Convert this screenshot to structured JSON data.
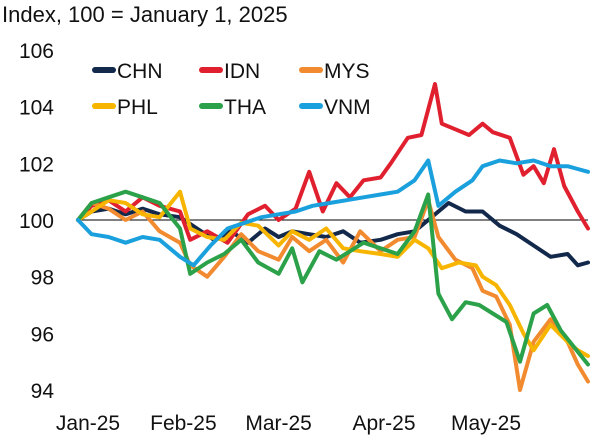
{
  "chart_data": {
    "type": "line",
    "title": "",
    "subtitle": "",
    "ylabel": "Index, 100 = January 1, 2025",
    "xlabel": "",
    "ylim": [
      94,
      106
    ],
    "y_ticks": [
      94,
      96,
      98,
      100,
      102,
      104,
      106
    ],
    "xlim": [
      "2025-01-01",
      "2025-05-31"
    ],
    "x_ticks": [
      {
        "date": "2025-01-01",
        "label": "Jan-25"
      },
      {
        "date": "2025-02-01",
        "label": "Feb-25"
      },
      {
        "date": "2025-03-01",
        "label": "Mar-25"
      },
      {
        "date": "2025-04-01",
        "label": "Apr-25"
      },
      {
        "date": "2025-05-01",
        "label": "May-25"
      }
    ],
    "reference_line": 100,
    "grid": false,
    "legend_position": "top-left",
    "series": [
      {
        "name": "CHN",
        "color": "#13294b",
        "points": [
          [
            "2025-01-01",
            100.0
          ],
          [
            "2025-01-05",
            100.3
          ],
          [
            "2025-01-10",
            100.4
          ],
          [
            "2025-01-15",
            100.2
          ],
          [
            "2025-01-20",
            100.4
          ],
          [
            "2025-01-25",
            100.2
          ],
          [
            "2025-01-31",
            100.1
          ],
          [
            "2025-02-05",
            99.7
          ],
          [
            "2025-02-10",
            99.3
          ],
          [
            "2025-02-15",
            99.6
          ],
          [
            "2025-02-20",
            99.2
          ],
          [
            "2025-02-25",
            99.7
          ],
          [
            "2025-03-01",
            99.4
          ],
          [
            "2025-03-05",
            99.6
          ],
          [
            "2025-03-10",
            99.5
          ],
          [
            "2025-03-15",
            99.4
          ],
          [
            "2025-03-20",
            99.6
          ],
          [
            "2025-03-25",
            99.2
          ],
          [
            "2025-03-31",
            99.3
          ],
          [
            "2025-04-05",
            99.5
          ],
          [
            "2025-04-10",
            99.6
          ],
          [
            "2025-04-15",
            100.1
          ],
          [
            "2025-04-20",
            100.6
          ],
          [
            "2025-04-25",
            100.3
          ],
          [
            "2025-04-30",
            100.3
          ],
          [
            "2025-05-05",
            99.8
          ],
          [
            "2025-05-10",
            99.5
          ],
          [
            "2025-05-15",
            99.1
          ],
          [
            "2025-05-20",
            98.7
          ],
          [
            "2025-05-25",
            98.8
          ],
          [
            "2025-05-28",
            98.4
          ],
          [
            "2025-05-31",
            98.5
          ]
        ]
      },
      {
        "name": "IDN",
        "color": "#e0202e",
        "points": [
          [
            "2025-01-01",
            100.0
          ],
          [
            "2025-01-05",
            100.5
          ],
          [
            "2025-01-10",
            100.7
          ],
          [
            "2025-01-15",
            100.3
          ],
          [
            "2025-01-20",
            100.8
          ],
          [
            "2025-01-25",
            100.5
          ],
          [
            "2025-01-31",
            100.3
          ],
          [
            "2025-02-03",
            99.3
          ],
          [
            "2025-02-08",
            99.6
          ],
          [
            "2025-02-14",
            99.2
          ],
          [
            "2025-02-20",
            100.2
          ],
          [
            "2025-02-25",
            100.5
          ],
          [
            "2025-03-01",
            100.0
          ],
          [
            "2025-03-06",
            100.4
          ],
          [
            "2025-03-10",
            101.7
          ],
          [
            "2025-03-14",
            100.3
          ],
          [
            "2025-03-18",
            101.3
          ],
          [
            "2025-03-22",
            100.8
          ],
          [
            "2025-03-26",
            101.4
          ],
          [
            "2025-03-31",
            101.5
          ],
          [
            "2025-04-03",
            102.0
          ],
          [
            "2025-04-08",
            102.9
          ],
          [
            "2025-04-12",
            103.0
          ],
          [
            "2025-04-16",
            104.8
          ],
          [
            "2025-04-18",
            103.4
          ],
          [
            "2025-04-22",
            103.2
          ],
          [
            "2025-04-26",
            103.0
          ],
          [
            "2025-04-30",
            103.4
          ],
          [
            "2025-05-03",
            103.1
          ],
          [
            "2025-05-08",
            102.9
          ],
          [
            "2025-05-12",
            101.6
          ],
          [
            "2025-05-15",
            101.9
          ],
          [
            "2025-05-18",
            101.3
          ],
          [
            "2025-05-21",
            102.5
          ],
          [
            "2025-05-24",
            101.2
          ],
          [
            "2025-05-28",
            100.3
          ],
          [
            "2025-05-31",
            99.7
          ]
        ]
      },
      {
        "name": "MYS",
        "color": "#f28b30",
        "points": [
          [
            "2025-01-01",
            100.0
          ],
          [
            "2025-01-05",
            100.6
          ],
          [
            "2025-01-10",
            100.4
          ],
          [
            "2025-01-15",
            100.0
          ],
          [
            "2025-01-20",
            100.3
          ],
          [
            "2025-01-25",
            99.6
          ],
          [
            "2025-01-31",
            99.2
          ],
          [
            "2025-02-03",
            98.4
          ],
          [
            "2025-02-08",
            98.0
          ],
          [
            "2025-02-13",
            98.7
          ],
          [
            "2025-02-18",
            99.5
          ],
          [
            "2025-02-23",
            98.9
          ],
          [
            "2025-03-01",
            98.6
          ],
          [
            "2025-03-05",
            99.4
          ],
          [
            "2025-03-10",
            98.9
          ],
          [
            "2025-03-15",
            99.3
          ],
          [
            "2025-03-20",
            98.5
          ],
          [
            "2025-03-25",
            99.6
          ],
          [
            "2025-03-31",
            98.9
          ],
          [
            "2025-04-05",
            99.3
          ],
          [
            "2025-04-10",
            99.4
          ],
          [
            "2025-04-14",
            100.7
          ],
          [
            "2025-04-17",
            99.4
          ],
          [
            "2025-04-22",
            98.6
          ],
          [
            "2025-04-27",
            98.3
          ],
          [
            "2025-04-30",
            97.5
          ],
          [
            "2025-05-04",
            97.3
          ],
          [
            "2025-05-08",
            96.3
          ],
          [
            "2025-05-11",
            94.0
          ],
          [
            "2025-05-15",
            95.7
          ],
          [
            "2025-05-20",
            96.5
          ],
          [
            "2025-05-25",
            95.7
          ],
          [
            "2025-05-28",
            94.9
          ],
          [
            "2025-05-31",
            94.3
          ]
        ]
      },
      {
        "name": "PHL",
        "color": "#f7b500",
        "points": [
          [
            "2025-01-01",
            100.0
          ],
          [
            "2025-01-05",
            100.3
          ],
          [
            "2025-01-10",
            100.7
          ],
          [
            "2025-01-15",
            100.6
          ],
          [
            "2025-01-20",
            100.2
          ],
          [
            "2025-01-25",
            100.1
          ],
          [
            "2025-01-31",
            101.0
          ],
          [
            "2025-02-03",
            99.7
          ],
          [
            "2025-02-08",
            99.4
          ],
          [
            "2025-02-13",
            99.3
          ],
          [
            "2025-02-18",
            99.9
          ],
          [
            "2025-02-23",
            99.8
          ],
          [
            "2025-03-01",
            99.1
          ],
          [
            "2025-03-05",
            99.6
          ],
          [
            "2025-03-10",
            99.3
          ],
          [
            "2025-03-15",
            99.7
          ],
          [
            "2025-03-20",
            99.0
          ],
          [
            "2025-03-25",
            98.9
          ],
          [
            "2025-03-31",
            98.8
          ],
          [
            "2025-04-05",
            98.7
          ],
          [
            "2025-04-10",
            99.3
          ],
          [
            "2025-04-14",
            99.0
          ],
          [
            "2025-04-18",
            98.3
          ],
          [
            "2025-04-23",
            98.5
          ],
          [
            "2025-04-28",
            98.4
          ],
          [
            "2025-04-30",
            98.0
          ],
          [
            "2025-05-04",
            97.7
          ],
          [
            "2025-05-08",
            97.0
          ],
          [
            "2025-05-12",
            96.0
          ],
          [
            "2025-05-15",
            95.4
          ],
          [
            "2025-05-20",
            96.3
          ],
          [
            "2025-05-25",
            95.7
          ],
          [
            "2025-05-28",
            95.4
          ],
          [
            "2025-05-31",
            95.2
          ]
        ]
      },
      {
        "name": "THA",
        "color": "#2ba14a",
        "points": [
          [
            "2025-01-01",
            100.0
          ],
          [
            "2025-01-05",
            100.6
          ],
          [
            "2025-01-10",
            100.8
          ],
          [
            "2025-01-15",
            101.0
          ],
          [
            "2025-01-20",
            100.8
          ],
          [
            "2025-01-25",
            100.6
          ],
          [
            "2025-01-31",
            99.7
          ],
          [
            "2025-02-03",
            98.1
          ],
          [
            "2025-02-08",
            98.5
          ],
          [
            "2025-02-13",
            98.8
          ],
          [
            "2025-02-18",
            99.3
          ],
          [
            "2025-02-23",
            98.5
          ],
          [
            "2025-03-01",
            98.1
          ],
          [
            "2025-03-05",
            99.0
          ],
          [
            "2025-03-08",
            97.8
          ],
          [
            "2025-03-13",
            98.9
          ],
          [
            "2025-03-18",
            98.6
          ],
          [
            "2025-03-22",
            98.9
          ],
          [
            "2025-03-26",
            99.2
          ],
          [
            "2025-03-31",
            99.0
          ],
          [
            "2025-04-05",
            98.8
          ],
          [
            "2025-04-10",
            99.6
          ],
          [
            "2025-04-14",
            100.9
          ],
          [
            "2025-04-17",
            97.4
          ],
          [
            "2025-04-21",
            96.5
          ],
          [
            "2025-04-25",
            97.1
          ],
          [
            "2025-04-29",
            97.0
          ],
          [
            "2025-05-03",
            96.7
          ],
          [
            "2025-05-07",
            96.4
          ],
          [
            "2025-05-11",
            95.0
          ],
          [
            "2025-05-15",
            96.7
          ],
          [
            "2025-05-19",
            97.0
          ],
          [
            "2025-05-23",
            96.1
          ],
          [
            "2025-05-27",
            95.5
          ],
          [
            "2025-05-31",
            94.9
          ]
        ]
      },
      {
        "name": "VNM",
        "color": "#1aa0dc",
        "points": [
          [
            "2025-01-01",
            100.0
          ],
          [
            "2025-01-05",
            99.5
          ],
          [
            "2025-01-10",
            99.4
          ],
          [
            "2025-01-15",
            99.2
          ],
          [
            "2025-01-20",
            99.4
          ],
          [
            "2025-01-25",
            99.3
          ],
          [
            "2025-01-31",
            98.7
          ],
          [
            "2025-02-04",
            98.4
          ],
          [
            "2025-02-09",
            99.1
          ],
          [
            "2025-02-14",
            99.7
          ],
          [
            "2025-02-19",
            99.9
          ],
          [
            "2025-02-24",
            100.1
          ],
          [
            "2025-03-01",
            100.2
          ],
          [
            "2025-03-06",
            100.3
          ],
          [
            "2025-03-11",
            100.5
          ],
          [
            "2025-03-16",
            100.6
          ],
          [
            "2025-03-21",
            100.7
          ],
          [
            "2025-03-26",
            100.8
          ],
          [
            "2025-03-31",
            100.9
          ],
          [
            "2025-04-05",
            101.0
          ],
          [
            "2025-04-10",
            101.4
          ],
          [
            "2025-04-14",
            102.1
          ],
          [
            "2025-04-17",
            100.5
          ],
          [
            "2025-04-22",
            101.0
          ],
          [
            "2025-04-27",
            101.4
          ],
          [
            "2025-04-30",
            101.9
          ],
          [
            "2025-05-05",
            102.1
          ],
          [
            "2025-05-10",
            102.0
          ],
          [
            "2025-05-15",
            102.1
          ],
          [
            "2025-05-20",
            101.9
          ],
          [
            "2025-05-25",
            101.9
          ],
          [
            "2025-05-28",
            101.8
          ],
          [
            "2025-05-31",
            101.7
          ]
        ]
      }
    ]
  }
}
